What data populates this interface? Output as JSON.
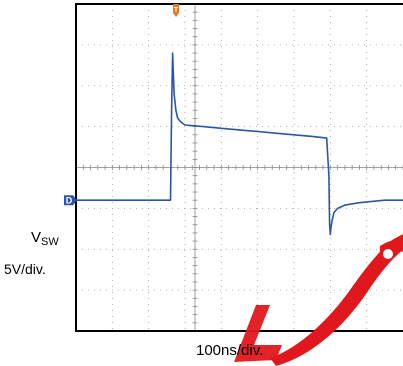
{
  "chart_data": {
    "type": "line",
    "title": "",
    "xlabel": "100ns/div.",
    "ylabel": "VSW 5V/div.",
    "channel": {
      "name": "V",
      "subscript": "SW",
      "scale": "5V/div.",
      "marker": "D",
      "color": "#2b55a8"
    },
    "trigger_marker": {
      "label": "T",
      "color": "#e07a1e"
    },
    "time_per_div": "100ns/div.",
    "volts_per_div": "5V/div.",
    "x_unit": "ns",
    "y_unit": "V",
    "xlim": [
      0,
      900
    ],
    "ylim": [
      -16,
      24
    ],
    "grid": true,
    "series": [
      {
        "name": "VSW",
        "x": [
          0,
          50,
          100,
          150,
          200,
          240,
          255,
          260,
          263,
          266,
          270,
          275,
          280,
          290,
          300,
          350,
          400,
          450,
          500,
          550,
          600,
          650,
          690,
          696,
          698,
          700,
          702,
          705,
          710,
          720,
          740,
          780,
          850,
          900
        ],
        "y": [
          0,
          0,
          0,
          0,
          0,
          0,
          0,
          0,
          11,
          18,
          13,
          11,
          10,
          9.5,
          9.2,
          9.0,
          8.8,
          8.6,
          8.4,
          8.2,
          8.0,
          7.8,
          7.6,
          3,
          -3,
          -4.2,
          -3.2,
          -2.5,
          -1.5,
          -1.0,
          -0.6,
          -0.3,
          0,
          0
        ]
      }
    ],
    "logo_color": "#e0181d"
  }
}
